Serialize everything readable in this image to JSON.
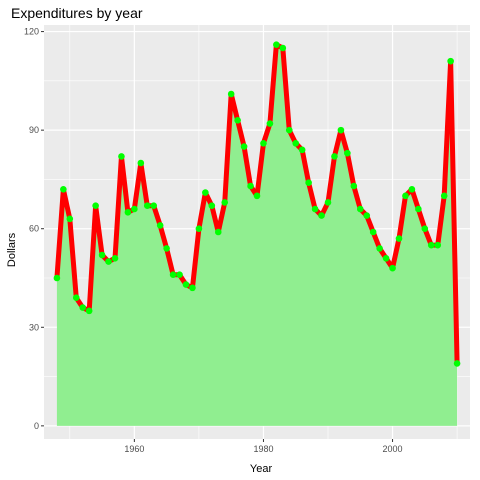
{
  "chart_data": {
    "type": "area",
    "title": "Expenditures by year",
    "xlabel": "Year",
    "ylabel": "Dollars",
    "xlim": [
      1946,
      2012
    ],
    "ylim": [
      -4,
      122
    ],
    "xticks": [
      1960,
      1980,
      2000
    ],
    "yticks": [
      0,
      30,
      60,
      90,
      120
    ],
    "grid": true,
    "legend": "none",
    "colors": {
      "panel": "#ebebeb",
      "grid": "#ffffff",
      "area_fill": "#90ee90",
      "line": "#ff0000",
      "points": "#00ff00",
      "tick": "#333333"
    },
    "series": [
      {
        "x": [
          1948,
          1949,
          1950,
          1951,
          1952,
          1953,
          1954,
          1955,
          1956,
          1957,
          1958,
          1959,
          1960,
          1961,
          1962,
          1963,
          1964,
          1965,
          1966,
          1967,
          1968,
          1969,
          1970,
          1971,
          1972,
          1973,
          1974,
          1975,
          1976,
          1977,
          1978,
          1979,
          1980,
          1981,
          1982,
          1983,
          1984,
          1985,
          1986,
          1987,
          1988,
          1989,
          1990,
          1991,
          1992,
          1993,
          1994,
          1995,
          1996,
          1997,
          1998,
          1999,
          2000,
          2001,
          2002,
          2003,
          2004,
          2005,
          2006,
          2007,
          2008,
          2009,
          2010
        ],
        "y": [
          45,
          72,
          63,
          39,
          36,
          35,
          67,
          52,
          50,
          51,
          82,
          65,
          66,
          80,
          67,
          67,
          61,
          54,
          46,
          46,
          43,
          42,
          60,
          71,
          67,
          59,
          68,
          101,
          93,
          85,
          73,
          70,
          86,
          92,
          116,
          115,
          90,
          86,
          84,
          74,
          66,
          64,
          68,
          82,
          90,
          83,
          73,
          66,
          64,
          59,
          54,
          51,
          48,
          57,
          70,
          72,
          66,
          60,
          55,
          55,
          70,
          111,
          19
        ]
      }
    ]
  }
}
